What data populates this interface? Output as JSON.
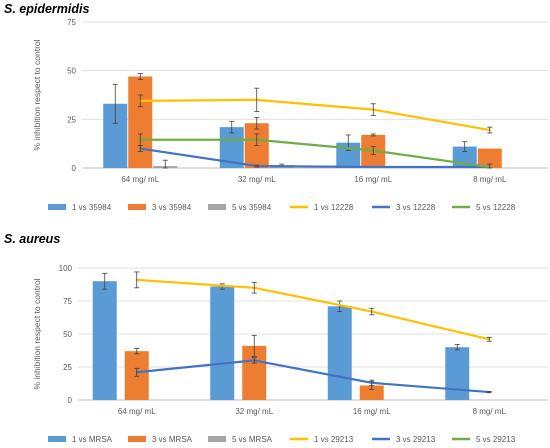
{
  "chart_data": [
    {
      "type": "bar",
      "title": "S. epidermidis",
      "xlabel": "",
      "ylabel": "% inhibition respect to control",
      "categories": [
        "64 mg/ mL",
        "32 mg/ mL",
        "16 mg/ mL",
        "8 mg/ mL"
      ],
      "ylim": [
        0,
        75
      ],
      "yticks": [
        0,
        25,
        50,
        75
      ],
      "grid": true,
      "legend": "bottom",
      "bar_series": [
        {
          "name": "1 vs 35984",
          "color": "#5b9bd5",
          "values": [
            33,
            21,
            13,
            11
          ],
          "errors": [
            10,
            3,
            4,
            2.5
          ]
        },
        {
          "name": "3 vs 35984",
          "color": "#ed7d31",
          "values": [
            47,
            23,
            17,
            10
          ],
          "errors": [
            1.5,
            3,
            0.5,
            0
          ]
        },
        {
          "name": "5 vs 35984",
          "color": "#a5a5a5",
          "values": [
            1,
            1.5,
            0.5,
            0
          ],
          "errors": [
            3,
            0.5,
            0,
            0
          ]
        }
      ],
      "line_series": [
        {
          "name": "1  vs 12228",
          "color": "#ffc000",
          "values": [
            34.5,
            35,
            30,
            19.5
          ],
          "errors": [
            3,
            6,
            3,
            1.5
          ]
        },
        {
          "name": "3  vs 12228",
          "color": "#4472c4",
          "values": [
            10,
            1,
            0.5,
            0.5
          ],
          "errors": [
            1.5,
            0.5,
            0,
            0
          ]
        },
        {
          "name": "5  vs 12228",
          "color": "#70ad47",
          "values": [
            14.5,
            14.5,
            9,
            0.5
          ],
          "errors": [
            3,
            3,
            2,
            1.5
          ]
        }
      ]
    },
    {
      "type": "bar",
      "title": "S. aureus",
      "xlabel": "",
      "ylabel": "% inhibition respect to control",
      "categories": [
        "64 mg/ mL",
        "32 mg/ mL",
        "16 mg/ mL",
        "8 mg/ mL"
      ],
      "ylim": [
        0,
        100
      ],
      "yticks": [
        0,
        25,
        50,
        75,
        100
      ],
      "grid": true,
      "legend": "bottom",
      "bar_series": [
        {
          "name": "1 vs MRSA",
          "color": "#5b9bd5",
          "values": [
            90,
            86,
            71,
            40
          ],
          "errors": [
            6,
            2,
            4,
            2
          ]
        },
        {
          "name": "3 vs MRSA",
          "color": "#ed7d31",
          "values": [
            37,
            41,
            11,
            0
          ],
          "errors": [
            2,
            8,
            3,
            0
          ]
        },
        {
          "name": "5 vs MRSA",
          "color": "#a5a5a5",
          "values": [
            0,
            0,
            0,
            0
          ],
          "errors": [
            0,
            0,
            0,
            0
          ]
        }
      ],
      "line_series": [
        {
          "name": "1  vs 29213",
          "color": "#ffc000",
          "values": [
            91,
            85,
            67,
            46
          ],
          "errors": [
            6,
            4,
            2.5,
            1.5
          ]
        },
        {
          "name": "3  vs 29213",
          "color": "#4472c4",
          "values": [
            21,
            30,
            13,
            6
          ],
          "errors": [
            3,
            2,
            2,
            0.5
          ]
        },
        {
          "name": "5  vs 29213",
          "color": "#70ad47",
          "values": [
            0,
            0,
            0,
            0
          ],
          "errors": [
            0,
            0,
            0,
            0
          ]
        }
      ]
    }
  ]
}
